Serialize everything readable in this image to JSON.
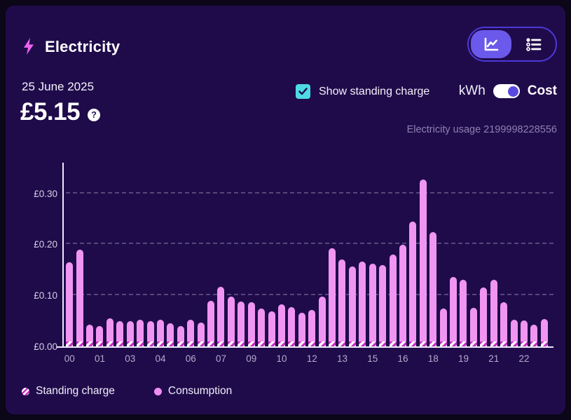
{
  "header": {
    "title": "Electricity",
    "view_toggle": {
      "selected": "chart",
      "options": [
        "chart",
        "list"
      ]
    }
  },
  "summary": {
    "date": "25 June 2025",
    "amount": "£5.15",
    "help_glyph": "?"
  },
  "controls": {
    "show_standing_charge_label": "Show standing charge",
    "show_standing_charge_checked": true,
    "unit_left": "kWh",
    "unit_right": "Cost",
    "unit_selected": "Cost",
    "usage_note": "Electricity usage 2199998228556"
  },
  "legend": [
    {
      "label": "Standing charge",
      "swatch": "striped-magenta-white"
    },
    {
      "label": "Consumption",
      "swatch": "solid-pink"
    }
  ],
  "colors": {
    "background": "#0b0618",
    "card": "#1f0b4a",
    "bar_pink": "#f095f2",
    "stripe_magenta": "#c92fc9",
    "accent_purple": "#6a59ea",
    "control_border": "#4b39d8",
    "checkbox_cyan": "#4ed9e6",
    "toggle_knob": "#5a49e0",
    "muted_text": "#8d81b2",
    "bolt_pink": "#ee63ee"
  },
  "chart_data": {
    "type": "bar",
    "stacked": true,
    "unit": "GBP",
    "title": "",
    "xlabel": "",
    "ylabel": "",
    "ylim": [
      0,
      0.36
    ],
    "grid": "dashed-horizontal",
    "legend_position": "bottom-left",
    "categories": [
      "00:00",
      "00:30",
      "01:00",
      "01:30",
      "02:00",
      "02:30",
      "03:00",
      "03:30",
      "04:00",
      "04:30",
      "05:00",
      "05:30",
      "06:00",
      "06:30",
      "07:00",
      "07:30",
      "08:00",
      "08:30",
      "09:00",
      "09:30",
      "10:00",
      "10:30",
      "11:00",
      "11:30",
      "12:00",
      "12:30",
      "13:00",
      "13:30",
      "14:00",
      "14:30",
      "15:00",
      "15:30",
      "16:00",
      "16:30",
      "17:00",
      "17:30",
      "18:00",
      "18:30",
      "19:00",
      "19:30",
      "20:00",
      "20:30",
      "21:00",
      "21:30",
      "22:00",
      "22:30",
      "23:00",
      "23:30"
    ],
    "series": [
      {
        "name": "Standing charge",
        "values": [
          0.01,
          0.01,
          0.01,
          0.01,
          0.01,
          0.01,
          0.01,
          0.01,
          0.01,
          0.01,
          0.01,
          0.01,
          0.01,
          0.01,
          0.01,
          0.01,
          0.01,
          0.01,
          0.01,
          0.01,
          0.01,
          0.01,
          0.01,
          0.01,
          0.01,
          0.01,
          0.01,
          0.01,
          0.01,
          0.01,
          0.01,
          0.01,
          0.01,
          0.01,
          0.01,
          0.01,
          0.01,
          0.01,
          0.01,
          0.01,
          0.01,
          0.01,
          0.01,
          0.01,
          0.01,
          0.01,
          0.01,
          0.01
        ]
      },
      {
        "name": "Consumption",
        "values": [
          0.155,
          0.18,
          0.032,
          0.03,
          0.045,
          0.04,
          0.04,
          0.042,
          0.04,
          0.042,
          0.036,
          0.03,
          0.042,
          0.037,
          0.079,
          0.107,
          0.087,
          0.078,
          0.076,
          0.064,
          0.059,
          0.073,
          0.067,
          0.056,
          0.061,
          0.088,
          0.182,
          0.161,
          0.147,
          0.156,
          0.152,
          0.15,
          0.17,
          0.189,
          0.234,
          0.317,
          0.214,
          0.064,
          0.126,
          0.121,
          0.065,
          0.106,
          0.12,
          0.076,
          0.042,
          0.041,
          0.032,
          0.044
        ]
      }
    ],
    "bar_totals": [
      0.165,
      0.19,
      0.042,
      0.04,
      0.055,
      0.05,
      0.05,
      0.052,
      0.05,
      0.052,
      0.046,
      0.04,
      0.052,
      0.047,
      0.089,
      0.117,
      0.097,
      0.088,
      0.086,
      0.074,
      0.069,
      0.083,
      0.077,
      0.066,
      0.071,
      0.098,
      0.192,
      0.171,
      0.157,
      0.166,
      0.162,
      0.16,
      0.18,
      0.199,
      0.244,
      0.327,
      0.224,
      0.074,
      0.136,
      0.131,
      0.075,
      0.116,
      0.13,
      0.086,
      0.052,
      0.051,
      0.042,
      0.054
    ],
    "x_tick_labels": [
      "00",
      "01",
      "03",
      "04",
      "06",
      "07",
      "09",
      "10",
      "12",
      "13",
      "15",
      "16",
      "18",
      "19",
      "21",
      "22"
    ],
    "x_tick_slot_indices": [
      0,
      3,
      6,
      9,
      12,
      15,
      18,
      21,
      24,
      27,
      30,
      33,
      36,
      39,
      42,
      45
    ],
    "ytick_labels": [
      "£0.00",
      "£0.10",
      "£0.20",
      "£0.30"
    ],
    "ytick_values": [
      0,
      0.1,
      0.2,
      0.3
    ]
  }
}
